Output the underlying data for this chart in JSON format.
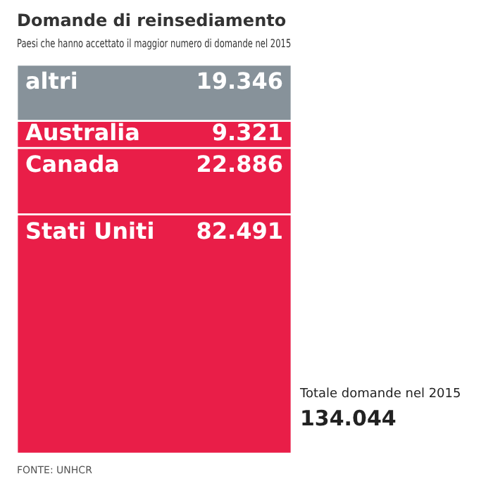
{
  "chart_data": {
    "type": "bar",
    "title": "Domande di reinsediamento",
    "subtitle": "Paesi che hanno accettato il maggior numero di domande nel 2015",
    "categories": [
      null
    ],
    "stacked": true,
    "tick_labels": false,
    "legend": false,
    "series": [
      {
        "name": "Stati Uniti",
        "color": "#e91e48",
        "values": [
          82491
        ],
        "value_labels": [
          "82.491"
        ]
      },
      {
        "name": "Canada",
        "color": "#e91e48",
        "values": [
          22886
        ],
        "value_labels": [
          "22.886"
        ]
      },
      {
        "name": "Australia",
        "color": "#e91e48",
        "values": [
          9321
        ],
        "value_labels": [
          "9.321"
        ]
      },
      {
        "name": "altri",
        "color": "#87929a",
        "values": [
          19346
        ],
        "value_labels": [
          "19.346"
        ]
      }
    ],
    "totals": [
      "134.044"
    ],
    "annotations": [
      "Totale domande nel 2015",
      "FONTE: UNHCR"
    ]
  }
}
